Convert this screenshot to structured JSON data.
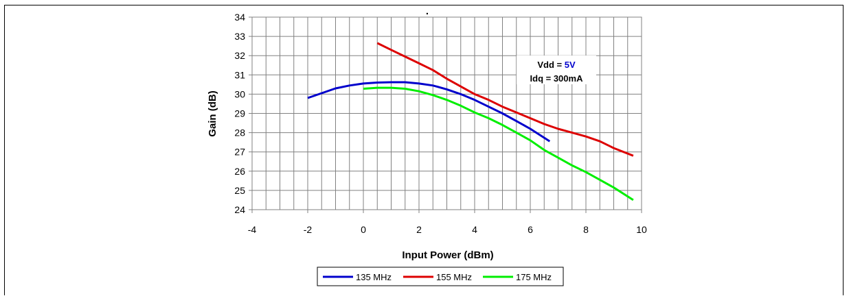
{
  "chart_data": {
    "type": "line",
    "title": ".",
    "xlabel": "Input Power (dBm)",
    "ylabel": "Gain (dB)",
    "xlim": [
      -4,
      10
    ],
    "ylim": [
      24,
      34
    ],
    "xticks": [
      -4,
      -2,
      0,
      2,
      4,
      6,
      8,
      10
    ],
    "yticks": [
      24,
      25,
      26,
      27,
      28,
      29,
      30,
      31,
      32,
      33,
      34
    ],
    "grid": true,
    "legend_position": "bottom",
    "annotation": {
      "vdd_label": "Vdd = ",
      "vdd_value": "5V",
      "idq_text": "Idq = 300mA"
    },
    "series": [
      {
        "name": "135 MHz",
        "color": "#0000cc",
        "points": [
          [
            -2.0,
            29.8
          ],
          [
            -1.5,
            30.05
          ],
          [
            -1.0,
            30.3
          ],
          [
            -0.5,
            30.45
          ],
          [
            0.0,
            30.55
          ],
          [
            0.5,
            30.6
          ],
          [
            1.0,
            30.62
          ],
          [
            1.5,
            30.62
          ],
          [
            2.0,
            30.55
          ],
          [
            2.5,
            30.45
          ],
          [
            3.0,
            30.25
          ],
          [
            3.5,
            30.0
          ],
          [
            4.0,
            29.7
          ],
          [
            4.5,
            29.35
          ],
          [
            5.0,
            29.0
          ],
          [
            5.5,
            28.6
          ],
          [
            6.0,
            28.2
          ],
          [
            6.7,
            27.55
          ]
        ]
      },
      {
        "name": "155 MHz",
        "color": "#dd0000",
        "points": [
          [
            0.5,
            32.65
          ],
          [
            1.0,
            32.3
          ],
          [
            1.5,
            31.95
          ],
          [
            2.0,
            31.6
          ],
          [
            2.5,
            31.25
          ],
          [
            3.0,
            30.8
          ],
          [
            3.5,
            30.4
          ],
          [
            4.0,
            30.0
          ],
          [
            4.5,
            29.7
          ],
          [
            5.0,
            29.35
          ],
          [
            5.5,
            29.05
          ],
          [
            6.0,
            28.75
          ],
          [
            6.5,
            28.45
          ],
          [
            7.0,
            28.2
          ],
          [
            7.5,
            28.0
          ],
          [
            8.0,
            27.8
          ],
          [
            8.5,
            27.55
          ],
          [
            9.0,
            27.2
          ],
          [
            9.7,
            26.8
          ]
        ]
      },
      {
        "name": "175 MHz",
        "color": "#00ee00",
        "points": [
          [
            0.0,
            30.28
          ],
          [
            0.5,
            30.33
          ],
          [
            1.0,
            30.33
          ],
          [
            1.5,
            30.28
          ],
          [
            2.0,
            30.15
          ],
          [
            2.5,
            29.95
          ],
          [
            3.0,
            29.7
          ],
          [
            3.5,
            29.4
          ],
          [
            4.0,
            29.05
          ],
          [
            4.5,
            28.75
          ],
          [
            5.0,
            28.4
          ],
          [
            5.5,
            28.0
          ],
          [
            6.0,
            27.6
          ],
          [
            6.5,
            27.1
          ],
          [
            7.0,
            26.7
          ],
          [
            7.5,
            26.3
          ],
          [
            8.0,
            25.95
          ],
          [
            8.5,
            25.55
          ],
          [
            9.0,
            25.15
          ],
          [
            9.7,
            24.5
          ]
        ]
      }
    ]
  }
}
